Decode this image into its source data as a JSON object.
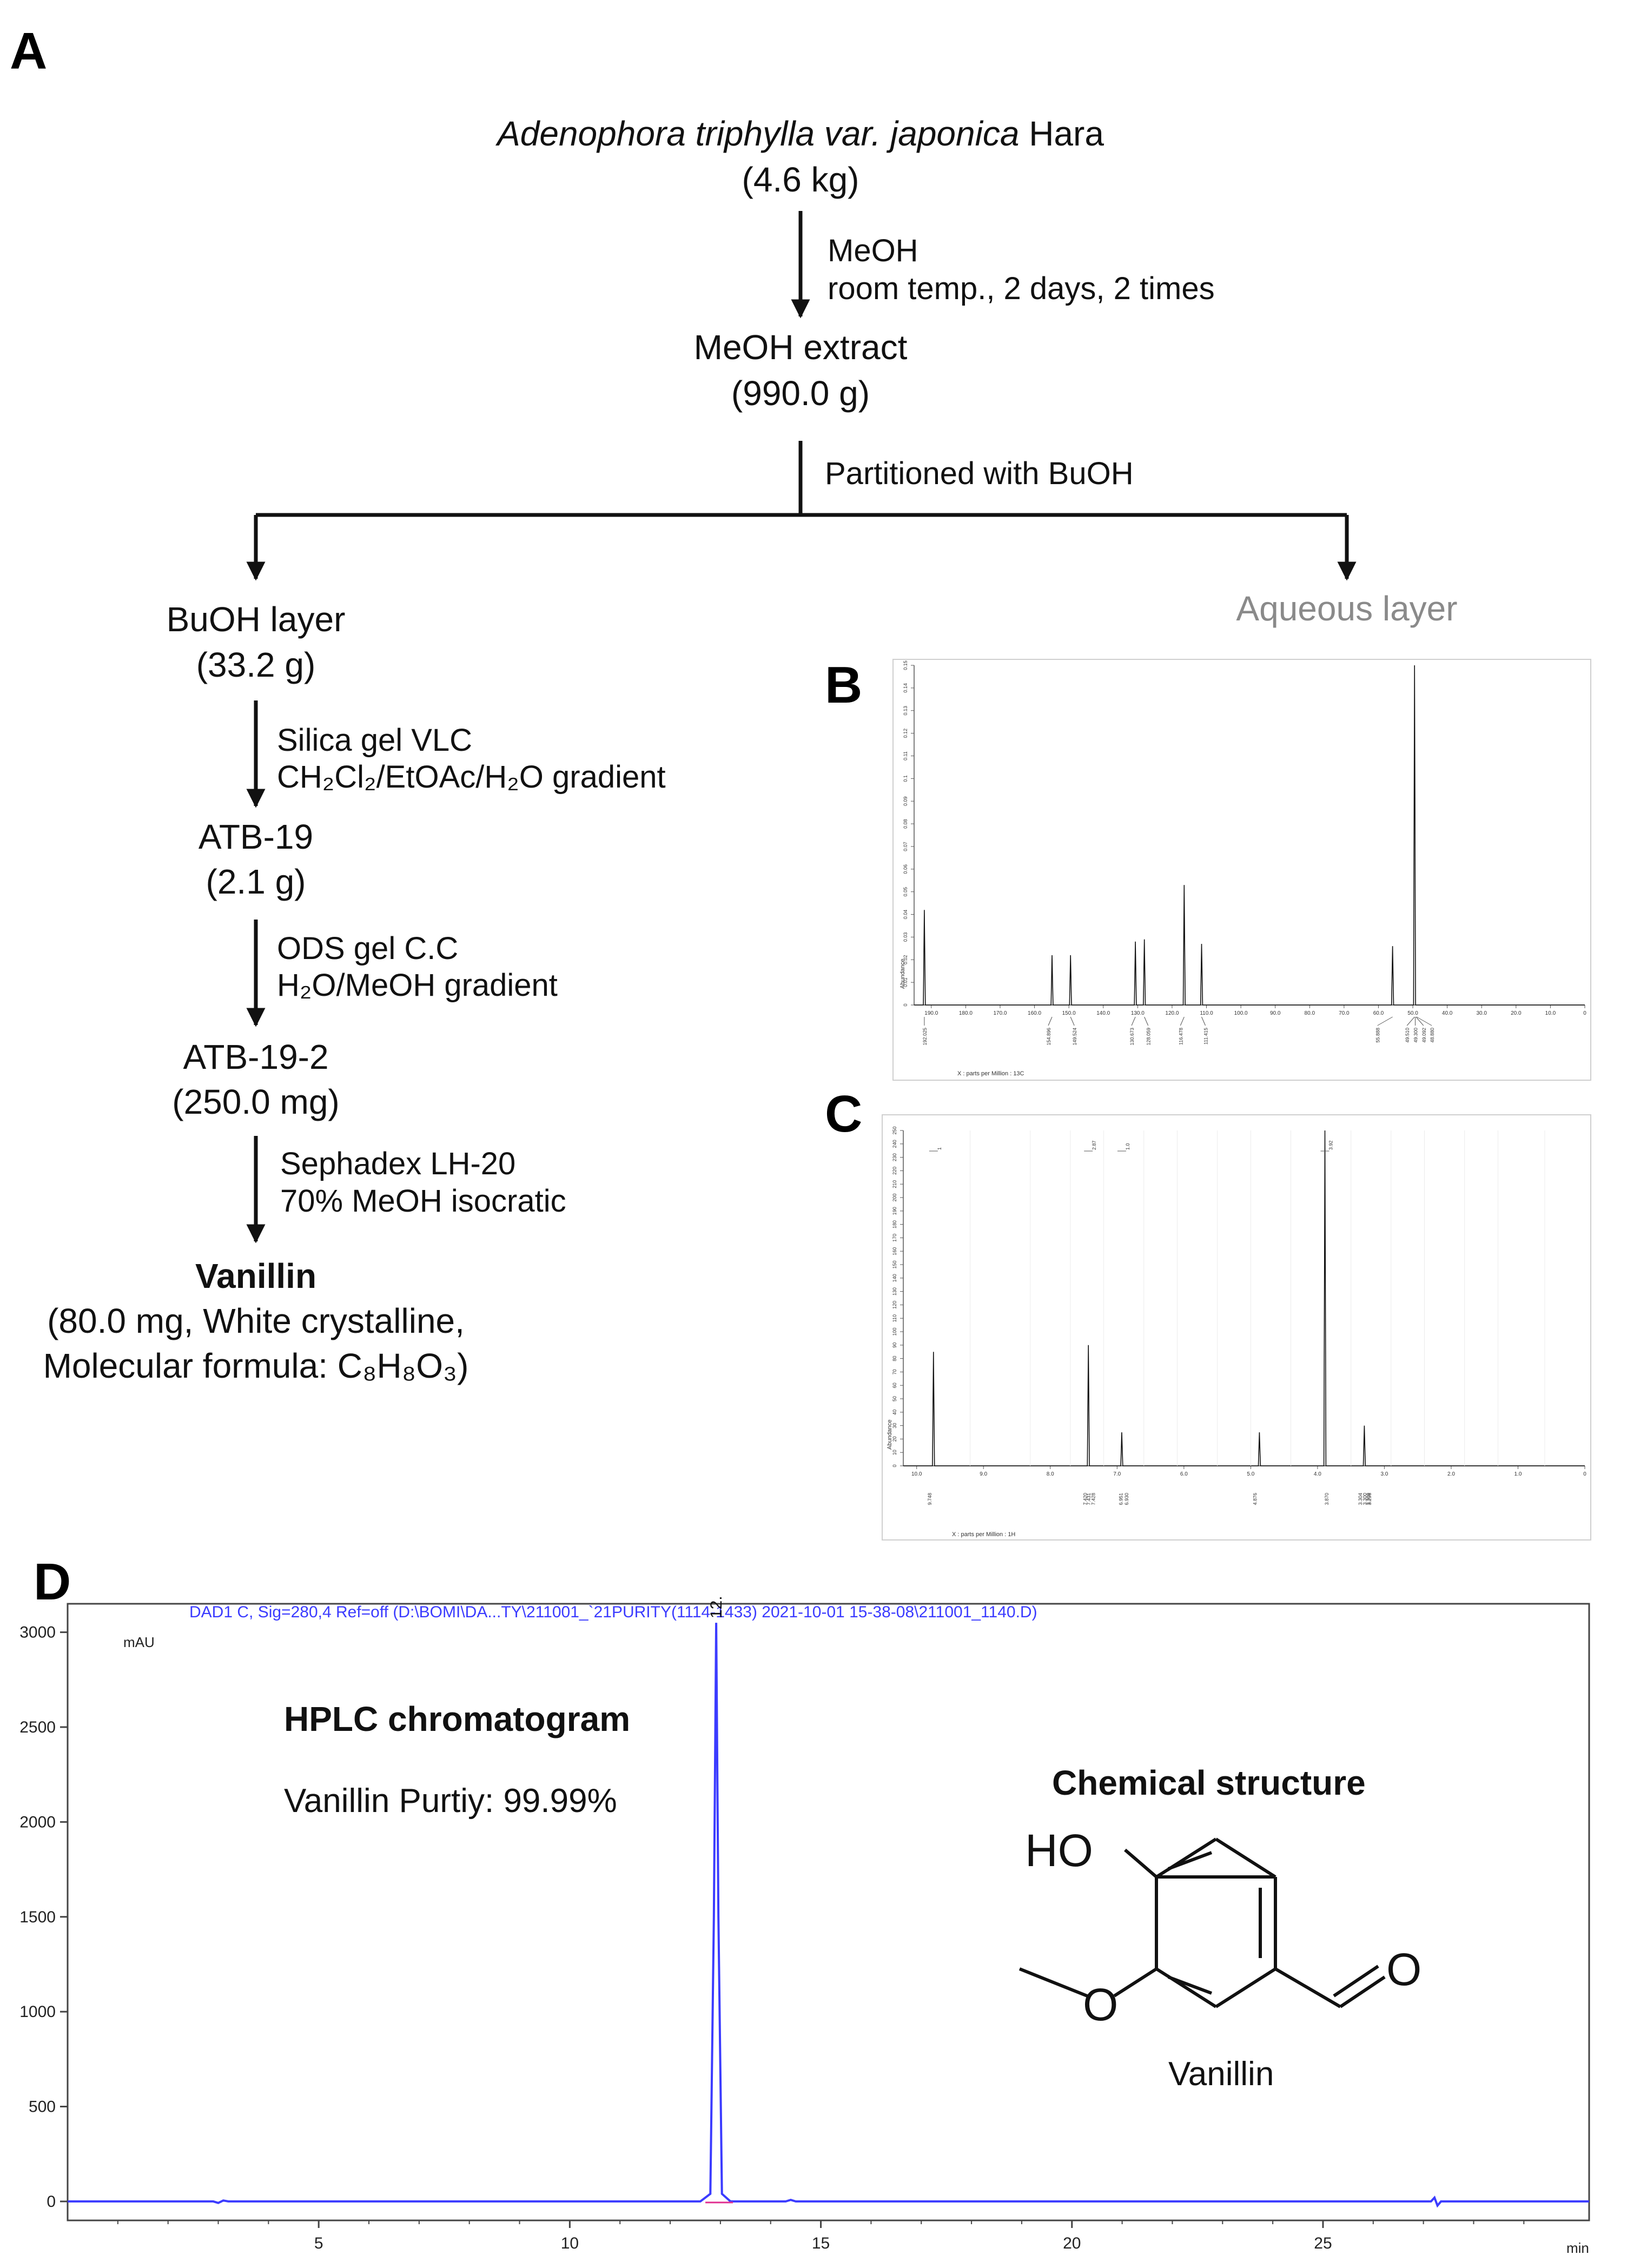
{
  "panel_labels": {
    "a": "A",
    "b": "B",
    "c": "C",
    "d": "D"
  },
  "flow": {
    "plant": {
      "genus_species": "Adenophora triphylla var. japonica",
      "authority": "Hara",
      "amount": "(4.6 kg)"
    },
    "step1": {
      "line1": "MeOH",
      "line2": "room temp., 2 days, 2 times"
    },
    "extract": {
      "name": "MeOH extract",
      "amount": "(990.0 g)"
    },
    "partition": "Partitioned with BuOH",
    "buoh": {
      "name": "BuOH layer",
      "amount": "(33.2 g)"
    },
    "aqueous": "Aqueous layer",
    "step2": {
      "line1": "Silica gel VLC",
      "line2": "CH₂Cl₂/EtOAc/H₂O  gradient"
    },
    "atb19": {
      "name": "ATB-19",
      "amount": "(2.1 g)"
    },
    "step3": {
      "line1": "ODS gel C.C",
      "line2": "H₂O/MeOH gradient"
    },
    "atb192": {
      "name": "ATB-19-2",
      "amount": "(250.0 mg)"
    },
    "step4": {
      "line1": "Sephadex LH-20",
      "line2": "70% MeOH isocratic"
    },
    "product": {
      "name": "Vanillin",
      "line1": "(80.0 mg, White crystalline,",
      "line2": "Molecular formula:  C₈H₈O₃)"
    }
  },
  "hplc": {
    "header": "DAD1 C, Sig=280,4 Ref=off (D:\\BOMI\\DA...TY\\211001_`21PURITY(1114-1433) 2021-10-01 15-38-08\\211001_1140.D)",
    "title": "HPLC chromatogram",
    "purity": "Vanillin Purtiy:  99.99%",
    "structure_title": "Chemical structure",
    "structure_name": "Vanillin",
    "atom_ho": "HO",
    "atom_o_methoxy": "O",
    "atom_o_aldehyde": "O"
  },
  "chart_data": [
    {
      "type": "line",
      "id": "hplc",
      "ylabel": "mAU",
      "xlabel": "min",
      "xlim": [
        0,
        30.3
      ],
      "ylim": [
        -100,
        3150
      ],
      "xticks": [
        5,
        10,
        15,
        20,
        25
      ],
      "yticks": [
        0,
        500,
        1000,
        1500,
        2000,
        2500,
        3000
      ],
      "peak": {
        "x": 12.916,
        "y": 3050,
        "label": "12.916"
      },
      "color": "#3b3bff"
    },
    {
      "type": "line",
      "id": "c13_nmr",
      "ylabel": "Abundance",
      "xlabel": "X : parts per Million : 13C",
      "xlim": [
        195,
        0
      ],
      "ylim": [
        0,
        0.15
      ],
      "xticks": [
        190.0,
        180.0,
        170.0,
        160.0,
        150.0,
        140.0,
        130.0,
        120.0,
        110.0,
        100.0,
        90.0,
        80.0,
        70.0,
        60.0,
        50.0,
        40.0,
        30.0,
        20.0,
        10.0,
        0
      ],
      "yticks": [
        0,
        0.01,
        0.02,
        0.03,
        0.04,
        0.05,
        0.06,
        0.07,
        0.08,
        0.09,
        0.1,
        0.11,
        0.12,
        0.13,
        0.14,
        0.15
      ],
      "peaks": [
        {
          "x": 192.025,
          "y": 0.042
        },
        {
          "x": 154.896,
          "y": 0.022
        },
        {
          "x": 149.524,
          "y": 0.022
        },
        {
          "x": 130.673,
          "y": 0.028
        },
        {
          "x": 128.059,
          "y": 0.029
        },
        {
          "x": 116.478,
          "y": 0.053
        },
        {
          "x": 111.415,
          "y": 0.027
        },
        {
          "x": 55.888,
          "y": 0.026
        },
        {
          "x": 49.5,
          "y": 0.15
        }
      ],
      "peak_labels": [
        "192.025",
        "154.896",
        "149.524",
        "130.673",
        "128.059",
        "116.478",
        "111.415",
        "55.888",
        "49.510",
        "49.300",
        "49.092",
        "48.880"
      ]
    },
    {
      "type": "line",
      "id": "h1_nmr",
      "ylabel": "Abundance",
      "xlabel": "X : parts per Million : 1H",
      "xlim": [
        10.2,
        0
      ],
      "ylim": [
        0,
        250
      ],
      "xticks": [
        10.0,
        9.0,
        8.0,
        7.0,
        6.0,
        5.0,
        4.0,
        3.0,
        2.0,
        1.0,
        0
      ],
      "yticks": [
        0,
        10,
        20,
        30,
        40,
        50,
        60,
        70,
        80,
        90,
        100,
        110,
        120,
        130,
        140,
        150,
        160,
        170,
        180,
        190,
        200,
        210,
        220,
        230,
        240,
        250
      ],
      "peaks": [
        {
          "x": 9.748,
          "y": 85
        },
        {
          "x": 7.43,
          "y": 90
        },
        {
          "x": 6.93,
          "y": 25
        },
        {
          "x": 4.87,
          "y": 25
        },
        {
          "x": 3.89,
          "y": 250
        },
        {
          "x": 3.3,
          "y": 30
        }
      ],
      "peak_labels": [
        "9.748",
        "7.431",
        "7.428",
        "7.420",
        "6.951",
        "6.930",
        "4.876",
        "3.870",
        "3.309",
        "3.304",
        "3.300",
        "3.296"
      ],
      "top_labels": [
        "1",
        "2.87",
        "1.0",
        "3.92"
      ]
    }
  ]
}
